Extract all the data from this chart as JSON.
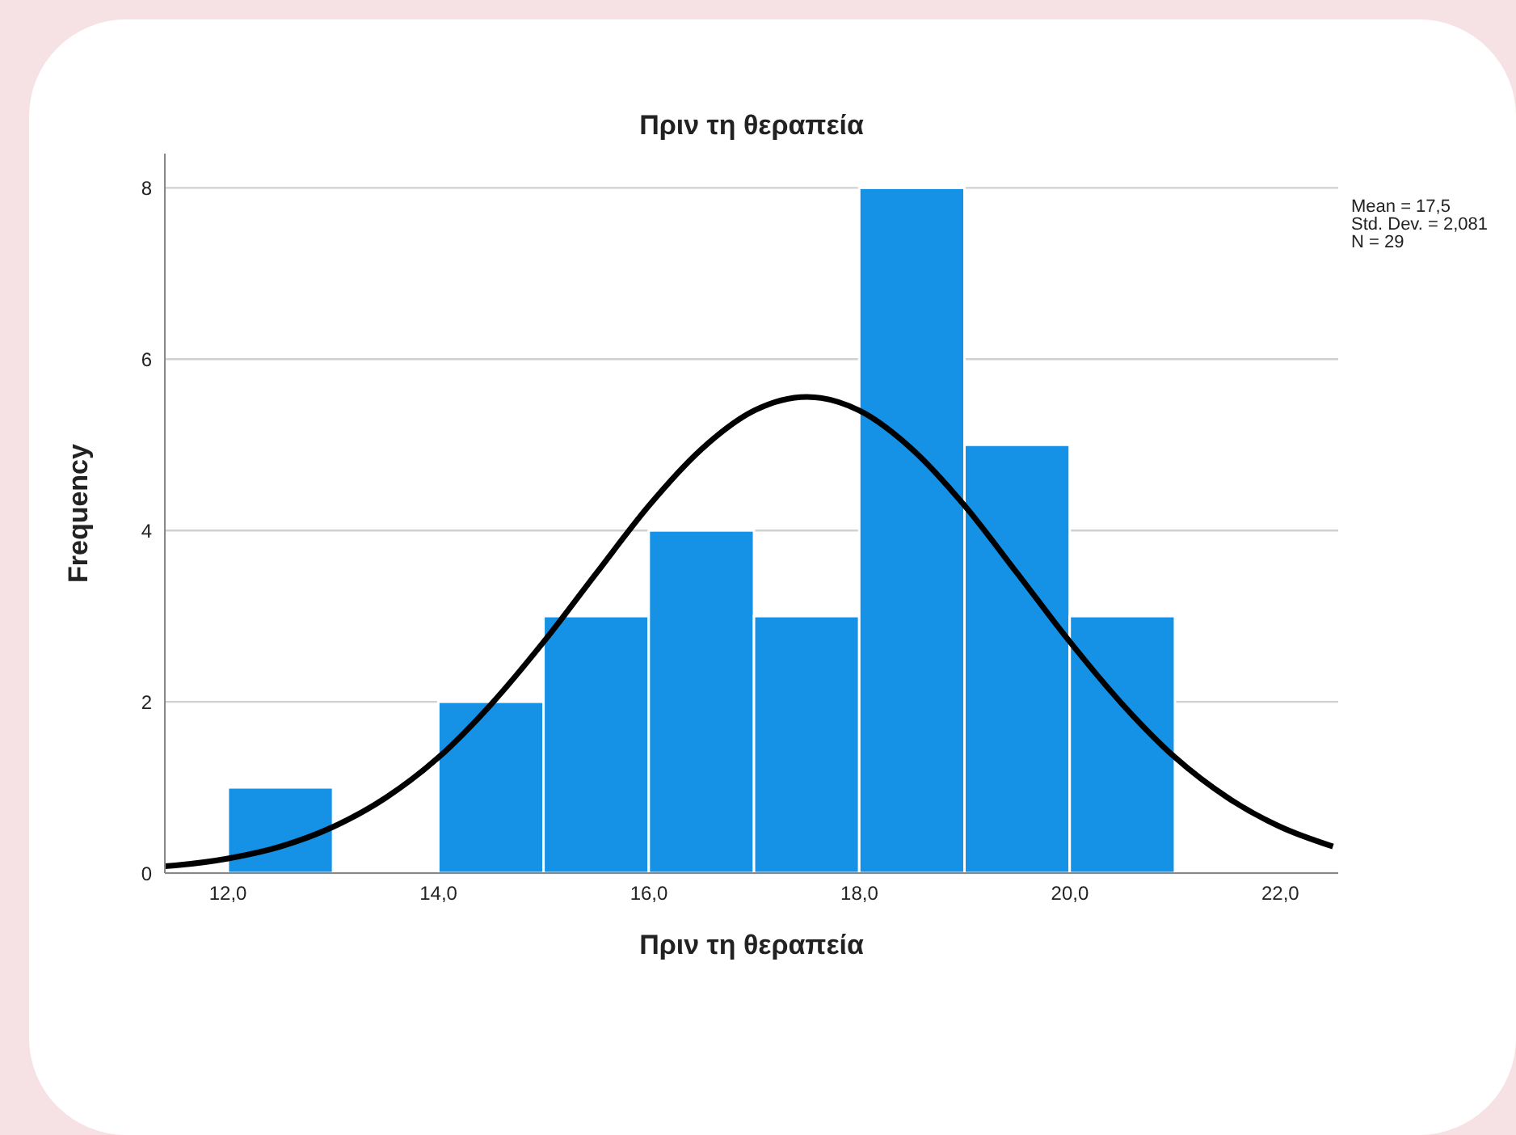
{
  "chart_data": {
    "type": "histogram",
    "title": "Πριν τη θεραπεία",
    "xlabel": "Πριν τη θεραπεία",
    "ylabel": "Frequency",
    "bins": [
      12,
      13,
      14,
      15,
      16,
      17,
      18,
      19,
      20,
      21
    ],
    "values": [
      1,
      0,
      2,
      3,
      4,
      3,
      8,
      5,
      3
    ],
    "color": "#1591e6",
    "series": [
      {
        "type": "line",
        "color": "#000000",
        "x": [
          11.4,
          11.5,
          12,
          12.5,
          13,
          13.5,
          14,
          14.5,
          15,
          15.5,
          16,
          16.5,
          17,
          17.5,
          18,
          18.5,
          19,
          19.5,
          20,
          20.5,
          21,
          21.5,
          22,
          22.5
        ],
        "values": [
          0.08,
          0.09,
          0.17,
          0.31,
          0.54,
          0.88,
          1.35,
          1.97,
          2.7,
          3.5,
          4.29,
          4.95,
          5.4,
          5.56,
          5.4,
          4.95,
          4.29,
          3.5,
          2.7,
          1.97,
          1.35,
          0.88,
          0.54,
          0.31
        ]
      }
    ],
    "xlim": [
      11.4,
      22.55
    ],
    "xticks": [
      {
        "value": 12,
        "label": "12,0"
      },
      {
        "value": 14,
        "label": "14,0"
      },
      {
        "value": 16,
        "label": "16,0"
      },
      {
        "value": 18,
        "label": "18,0"
      },
      {
        "value": 20,
        "label": "20,0"
      },
      {
        "value": 22,
        "label": "22,0"
      }
    ],
    "ylim": [
      0,
      8.4
    ],
    "yticks": [
      0,
      2,
      4,
      6,
      8
    ],
    "grid": "y",
    "legend": false,
    "marker": "none",
    "line_style": "solid",
    "annotations": [
      "Mean = 17,5",
      "Std. Dev. = 2,081",
      "N = 29"
    ]
  }
}
